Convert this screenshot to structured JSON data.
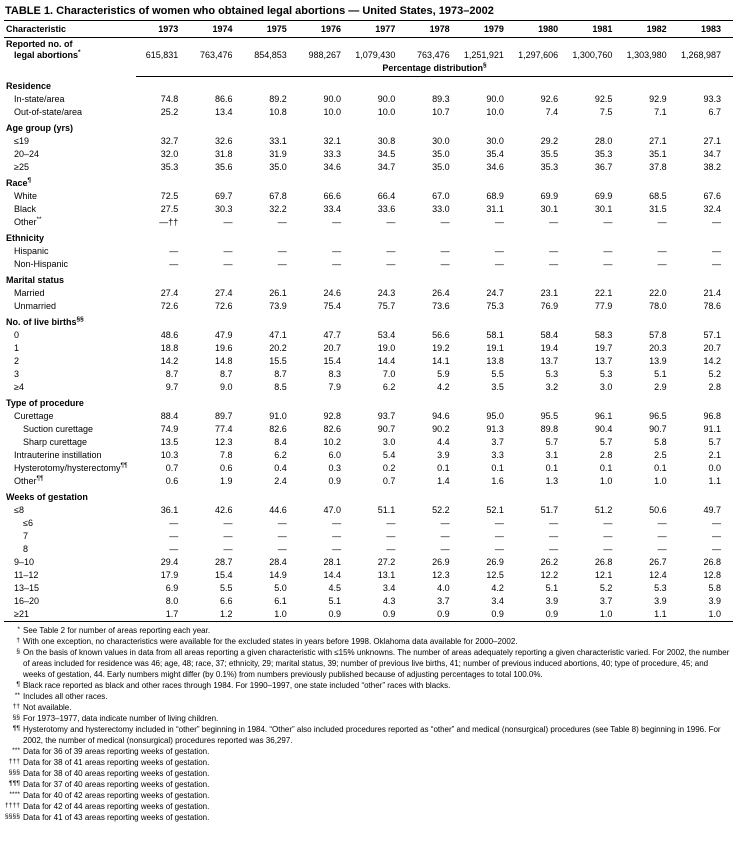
{
  "title": "TABLE 1. Characteristics of women who obtained legal abortions — United States, 1973–2002",
  "table": {
    "char_header": "Characteristic",
    "years": [
      "1973",
      "1974",
      "1975",
      "1976",
      "1977",
      "1978",
      "1979",
      "1980",
      "1981",
      "1982",
      "1983"
    ],
    "reported": {
      "label_line1": "Reported no. of",
      "label_line2": "legal abortions",
      "sup": "*",
      "values": [
        "615,831",
        "763,476",
        "854,853",
        "988,267",
        "1,079,430",
        "763,476",
        "1,251,921",
        "1,297,606",
        "1,300,760",
        "1,303,980",
        "1,268,987"
      ]
    },
    "pct_header": {
      "text": "Percentage distribution",
      "sup": "§"
    },
    "sections": [
      {
        "name": "Residence",
        "rows": [
          {
            "label": "In-state/area",
            "indent": 1,
            "values": [
              "74.8",
              "86.6",
              "89.2",
              "90.0",
              "90.0",
              "89.3",
              "90.0",
              "92.6",
              "92.5",
              "92.9",
              "93.3"
            ]
          },
          {
            "label": "Out-of-state/area",
            "indent": 1,
            "values": [
              "25.2",
              "13.4",
              "10.8",
              "10.0",
              "10.0",
              "10.7",
              "10.0",
              "7.4",
              "7.5",
              "7.1",
              "6.7"
            ]
          }
        ]
      },
      {
        "name": "Age group (yrs)",
        "rows": [
          {
            "label": "≤19",
            "indent": 1,
            "values": [
              "32.7",
              "32.6",
              "33.1",
              "32.1",
              "30.8",
              "30.0",
              "30.0",
              "29.2",
              "28.0",
              "27.1",
              "27.1"
            ]
          },
          {
            "label": "20–24",
            "indent": 1,
            "values": [
              "32.0",
              "31.8",
              "31.9",
              "33.3",
              "34.5",
              "35.0",
              "35.4",
              "35.5",
              "35.3",
              "35.1",
              "34.7"
            ]
          },
          {
            "label": "≥25",
            "indent": 1,
            "values": [
              "35.3",
              "35.6",
              "35.0",
              "34.6",
              "34.7",
              "35.0",
              "34.6",
              "35.3",
              "36.7",
              "37.8",
              "38.2"
            ]
          }
        ]
      },
      {
        "name": "Race",
        "sup": "¶",
        "rows": [
          {
            "label": "White",
            "indent": 1,
            "values": [
              "72.5",
              "69.7",
              "67.8",
              "66.6",
              "66.4",
              "67.0",
              "68.9",
              "69.9",
              "69.9",
              "68.5",
              "67.6"
            ]
          },
          {
            "label": "Black",
            "indent": 1,
            "values": [
              "27.5",
              "30.3",
              "32.2",
              "33.4",
              "33.6",
              "33.0",
              "31.1",
              "30.1",
              "30.1",
              "31.5",
              "32.4"
            ]
          },
          {
            "label": "Other",
            "sup": "**",
            "indent": 1,
            "values": [
              "—††",
              "—",
              "—",
              "—",
              "—",
              "—",
              "—",
              "—",
              "—",
              "—",
              "—"
            ]
          }
        ]
      },
      {
        "name": "Ethnicity",
        "rows": [
          {
            "label": "Hispanic",
            "indent": 1,
            "values": [
              "—",
              "—",
              "—",
              "—",
              "—",
              "—",
              "—",
              "—",
              "—",
              "—",
              "—"
            ]
          },
          {
            "label": "Non-Hispanic",
            "indent": 1,
            "values": [
              "—",
              "—",
              "—",
              "—",
              "—",
              "—",
              "—",
              "—",
              "—",
              "—",
              "—"
            ]
          }
        ]
      },
      {
        "name": "Marital status",
        "rows": [
          {
            "label": "Married",
            "indent": 1,
            "values": [
              "27.4",
              "27.4",
              "26.1",
              "24.6",
              "24.3",
              "26.4",
              "24.7",
              "23.1",
              "22.1",
              "22.0",
              "21.4"
            ]
          },
          {
            "label": "Unmarried",
            "indent": 1,
            "values": [
              "72.6",
              "72.6",
              "73.9",
              "75.4",
              "75.7",
              "73.6",
              "75.3",
              "76.9",
              "77.9",
              "78.0",
              "78.6"
            ]
          }
        ]
      },
      {
        "name": "No. of live births",
        "sup": "§§",
        "rows": [
          {
            "label": "0",
            "indent": 1,
            "values": [
              "48.6",
              "47.9",
              "47.1",
              "47.7",
              "53.4",
              "56.6",
              "58.1",
              "58.4",
              "58.3",
              "57.8",
              "57.1"
            ]
          },
          {
            "label": "1",
            "indent": 1,
            "values": [
              "18.8",
              "19.6",
              "20.2",
              "20.7",
              "19.0",
              "19.2",
              "19.1",
              "19.4",
              "19.7",
              "20.3",
              "20.7"
            ]
          },
          {
            "label": "2",
            "indent": 1,
            "values": [
              "14.2",
              "14.8",
              "15.5",
              "15.4",
              "14.4",
              "14.1",
              "13.8",
              "13.7",
              "13.7",
              "13.9",
              "14.2"
            ]
          },
          {
            "label": "3",
            "indent": 1,
            "values": [
              "8.7",
              "8.7",
              "8.7",
              "8.3",
              "7.0",
              "5.9",
              "5.5",
              "5.3",
              "5.3",
              "5.1",
              "5.2"
            ]
          },
          {
            "label": "≥4",
            "indent": 1,
            "values": [
              "9.7",
              "9.0",
              "8.5",
              "7.9",
              "6.2",
              "4.2",
              "3.5",
              "3.2",
              "3.0",
              "2.9",
              "2.8"
            ]
          }
        ]
      },
      {
        "name": "Type of procedure",
        "rows": [
          {
            "label": "Curettage",
            "indent": 1,
            "values": [
              "88.4",
              "89.7",
              "91.0",
              "92.8",
              "93.7",
              "94.6",
              "95.0",
              "95.5",
              "96.1",
              "96.5",
              "96.8"
            ]
          },
          {
            "label": "Suction curettage",
            "indent": 2,
            "values": [
              "74.9",
              "77.4",
              "82.6",
              "82.6",
              "90.7",
              "90.2",
              "91.3",
              "89.8",
              "90.4",
              "90.7",
              "91.1"
            ]
          },
          {
            "label": "Sharp curettage",
            "indent": 2,
            "values": [
              "13.5",
              "12.3",
              "8.4",
              "10.2",
              "3.0",
              "4.4",
              "3.7",
              "5.7",
              "5.7",
              "5.8",
              "5.7"
            ]
          },
          {
            "label": "Intrauterine instillation",
            "indent": 1,
            "values": [
              "10.3",
              "7.8",
              "6.2",
              "6.0",
              "5.4",
              "3.9",
              "3.3",
              "3.1",
              "2.8",
              "2.5",
              "2.1"
            ]
          },
          {
            "label": "Hysterotomy/hysterectomy",
            "sup": "¶¶",
            "indent": 1,
            "values": [
              "0.7",
              "0.6",
              "0.4",
              "0.3",
              "0.2",
              "0.1",
              "0.1",
              "0.1",
              "0.1",
              "0.1",
              "0.0"
            ]
          },
          {
            "label": "Other",
            "sup": "¶¶",
            "indent": 1,
            "values": [
              "0.6",
              "1.9",
              "2.4",
              "0.9",
              "0.7",
              "1.4",
              "1.6",
              "1.3",
              "1.0",
              "1.0",
              "1.1"
            ]
          }
        ]
      },
      {
        "name": "Weeks of gestation",
        "rows": [
          {
            "label": "≤8",
            "indent": 1,
            "values": [
              "36.1",
              "42.6",
              "44.6",
              "47.0",
              "51.1",
              "52.2",
              "52.1",
              "51.7",
              "51.2",
              "50.6",
              "49.7"
            ]
          },
          {
            "label": "≤6",
            "indent": 2,
            "values": [
              "—",
              "—",
              "—",
              "—",
              "—",
              "—",
              "—",
              "—",
              "—",
              "—",
              "—"
            ]
          },
          {
            "label": "7",
            "indent": 2,
            "values": [
              "—",
              "—",
              "—",
              "—",
              "—",
              "—",
              "—",
              "—",
              "—",
              "—",
              "—"
            ]
          },
          {
            "label": "8",
            "indent": 2,
            "values": [
              "—",
              "—",
              "—",
              "—",
              "—",
              "—",
              "—",
              "—",
              "—",
              "—",
              "—"
            ]
          },
          {
            "label": "9–10",
            "indent": 1,
            "values": [
              "29.4",
              "28.7",
              "28.4",
              "28.1",
              "27.2",
              "26.9",
              "26.9",
              "26.2",
              "26.8",
              "26.7",
              "26.8"
            ]
          },
          {
            "label": "11–12",
            "indent": 1,
            "values": [
              "17.9",
              "15.4",
              "14.9",
              "14.4",
              "13.1",
              "12.3",
              "12.5",
              "12.2",
              "12.1",
              "12.4",
              "12.8"
            ]
          },
          {
            "label": "13–15",
            "indent": 1,
            "values": [
              "6.9",
              "5.5",
              "5.0",
              "4.5",
              "3.4",
              "4.0",
              "4.2",
              "5.1",
              "5.2",
              "5.3",
              "5.8"
            ]
          },
          {
            "label": "16–20",
            "indent": 1,
            "values": [
              "8.0",
              "6.6",
              "6.1",
              "5.1",
              "4.3",
              "3.7",
              "3.4",
              "3.9",
              "3.7",
              "3.9",
              "3.9"
            ]
          },
          {
            "label": "≥21",
            "indent": 1,
            "values": [
              "1.7",
              "1.2",
              "1.0",
              "0.9",
              "0.9",
              "0.9",
              "0.9",
              "0.9",
              "1.0",
              "1.1",
              "1.0"
            ]
          }
        ]
      }
    ]
  },
  "footnotes": [
    {
      "marker": "*",
      "text": "See Table 2 for number of areas reporting each year."
    },
    {
      "marker": "†",
      "text": "With one exception, no characteristics were available for the excluded states in years before 1998. Oklahoma data available for 2000–2002."
    },
    {
      "marker": "§",
      "text": "On the basis of known values in data from all areas reporting a given characteristic with ≤15% unknowns. The number of areas adequately reporting a given characteristic varied. For 2002, the number of areas included for residence was 46; age, 48; race, 37; ethnicity, 29; marital status, 39; number of previous live births, 41; number of previous induced abortions, 40; type of procedure, 45; and weeks of gestation, 44. Early numbers might differ (by 0.1%) from numbers previously published because of adjusting percentages to total 100.0%."
    },
    {
      "marker": "¶",
      "text": "Black race reported as black and other races through 1984. For 1990–1997, one state included “other” races with blacks."
    },
    {
      "marker": "**",
      "text": "Includes all other races."
    },
    {
      "marker": "††",
      "text": "Not available."
    },
    {
      "marker": "§§",
      "text": "For 1973–1977, data indicate number of living children."
    },
    {
      "marker": "¶¶",
      "text": "Hysterotomy and hysterectomy included in “other” beginning in 1984. “Other” also included procedures reported as “other” and medical (nonsurgical) procedures (see Table 8) beginning in 1996. For 2002, the number of medical (nonsurgical) procedures reported was 36,297."
    },
    {
      "marker": "***",
      "text": "Data for 36 of 39 areas reporting weeks of gestation."
    },
    {
      "marker": "†††",
      "text": "Data for 38 of 41 areas reporting weeks of gestation."
    },
    {
      "marker": "§§§",
      "text": "Data for 38 of 40 areas reporting weeks of gestation."
    },
    {
      "marker": "¶¶¶",
      "text": "Data for 37 of 40 areas reporting weeks of gestation."
    },
    {
      "marker": "****",
      "text": "Data for 40 of 42 areas reporting weeks of gestation."
    },
    {
      "marker": "††††",
      "text": "Data for 42 of 44 areas reporting weeks of gestation."
    },
    {
      "marker": "§§§§",
      "text": "Data for 41 of 43 areas reporting weeks of gestation."
    }
  ]
}
